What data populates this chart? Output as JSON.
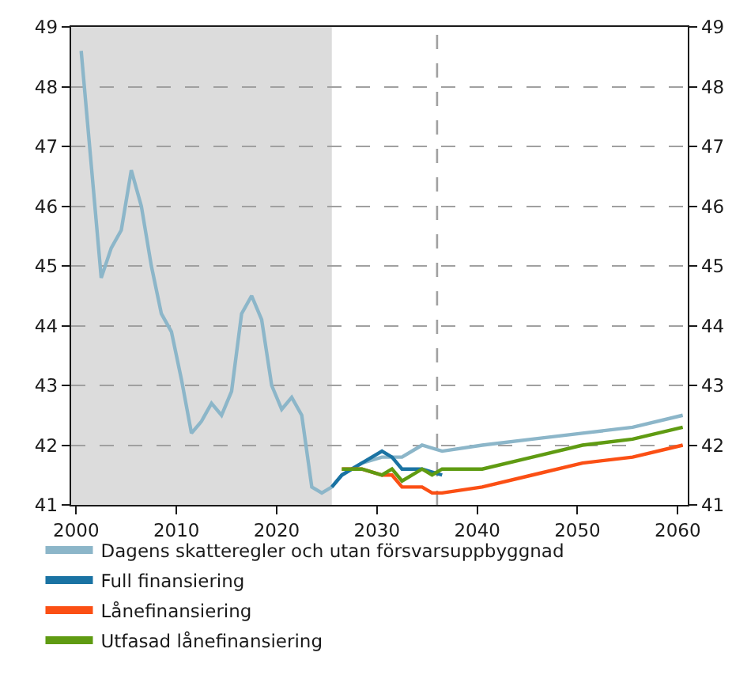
{
  "chart_data": {
    "type": "line",
    "xlim": [
      1999.5,
      2061
    ],
    "xticks": [
      2000,
      2010,
      2020,
      2030,
      2040,
      2050,
      2060
    ],
    "ylim": [
      41,
      49
    ],
    "yticks": [
      41,
      42,
      43,
      44,
      45,
      46,
      47,
      48,
      49
    ],
    "y2lim": [
      41,
      49
    ],
    "y2ticks": [
      41,
      42,
      43,
      44,
      45,
      46,
      47,
      48,
      49
    ],
    "grid": "y",
    "legend": "bottom",
    "marker": "none",
    "line_style": "solid",
    "bands": [
      {
        "axis": "x",
        "from": 1999.5,
        "to": 2025.5,
        "color": "#dcdcdc"
      }
    ],
    "ref_lines": [
      {
        "axis": "x",
        "value": 2036,
        "color": "#a0a0a0",
        "line_style": "dashed"
      }
    ],
    "series": [
      {
        "name": "Dagens skatteregler och utan försvarsuppbyggnad",
        "color": "#8cb6c9",
        "x": [
          2000.5,
          2001.5,
          2002.5,
          2003.5,
          2004.5,
          2005.5,
          2006.5,
          2007.5,
          2008.5,
          2009.5,
          2010.5,
          2011.5,
          2012.5,
          2013.5,
          2014.5,
          2015.5,
          2016.5,
          2017.5,
          2018.5,
          2019.5,
          2020.5,
          2021.5,
          2022.5,
          2023.5,
          2024.5,
          2025.5,
          2026.5,
          2028.5,
          2030.5,
          2032.5,
          2034.5,
          2036.5,
          2040.5,
          2045.5,
          2050.5,
          2055.5,
          2060.5
        ],
        "values": [
          48.6,
          46.7,
          44.8,
          45.3,
          45.6,
          46.6,
          46.0,
          45.0,
          44.2,
          43.9,
          43.1,
          42.2,
          42.4,
          42.7,
          42.5,
          42.9,
          44.2,
          44.5,
          44.1,
          43.0,
          42.6,
          42.8,
          42.5,
          41.3,
          41.2,
          41.3,
          41.5,
          41.7,
          41.8,
          41.8,
          42.0,
          41.9,
          42.0,
          42.1,
          42.2,
          42.3,
          42.5
        ]
      },
      {
        "name": "Full finansiering",
        "color": "#1a73a3",
        "x": [
          2025.5,
          2026.5,
          2027.5,
          2028.5,
          2030.5,
          2031.5,
          2032.5,
          2034.5,
          2036.5
        ],
        "values": [
          41.3,
          41.5,
          41.6,
          41.7,
          41.9,
          41.8,
          41.6,
          41.6,
          41.5
        ]
      },
      {
        "name": "Lånefinansiering",
        "color": "#fb4f14",
        "x": [
          2026.5,
          2028.5,
          2030.5,
          2031.5,
          2032.5,
          2034.5,
          2035.5,
          2036.5,
          2040.5,
          2045.5,
          2050.5,
          2055.5,
          2060.5
        ],
        "values": [
          41.6,
          41.6,
          41.5,
          41.5,
          41.3,
          41.3,
          41.2,
          41.2,
          41.3,
          41.5,
          41.7,
          41.8,
          42.0
        ]
      },
      {
        "name": "Utfasad lånefinansiering",
        "color": "#5f9b12",
        "x": [
          2026.5,
          2028.5,
          2030.5,
          2031.5,
          2032.5,
          2034.5,
          2035.5,
          2036.5,
          2040.5,
          2045.5,
          2050.5,
          2055.5,
          2060.5
        ],
        "values": [
          41.6,
          41.6,
          41.5,
          41.6,
          41.4,
          41.6,
          41.5,
          41.6,
          41.6,
          41.8,
          42.0,
          42.1,
          42.3
        ]
      }
    ]
  }
}
